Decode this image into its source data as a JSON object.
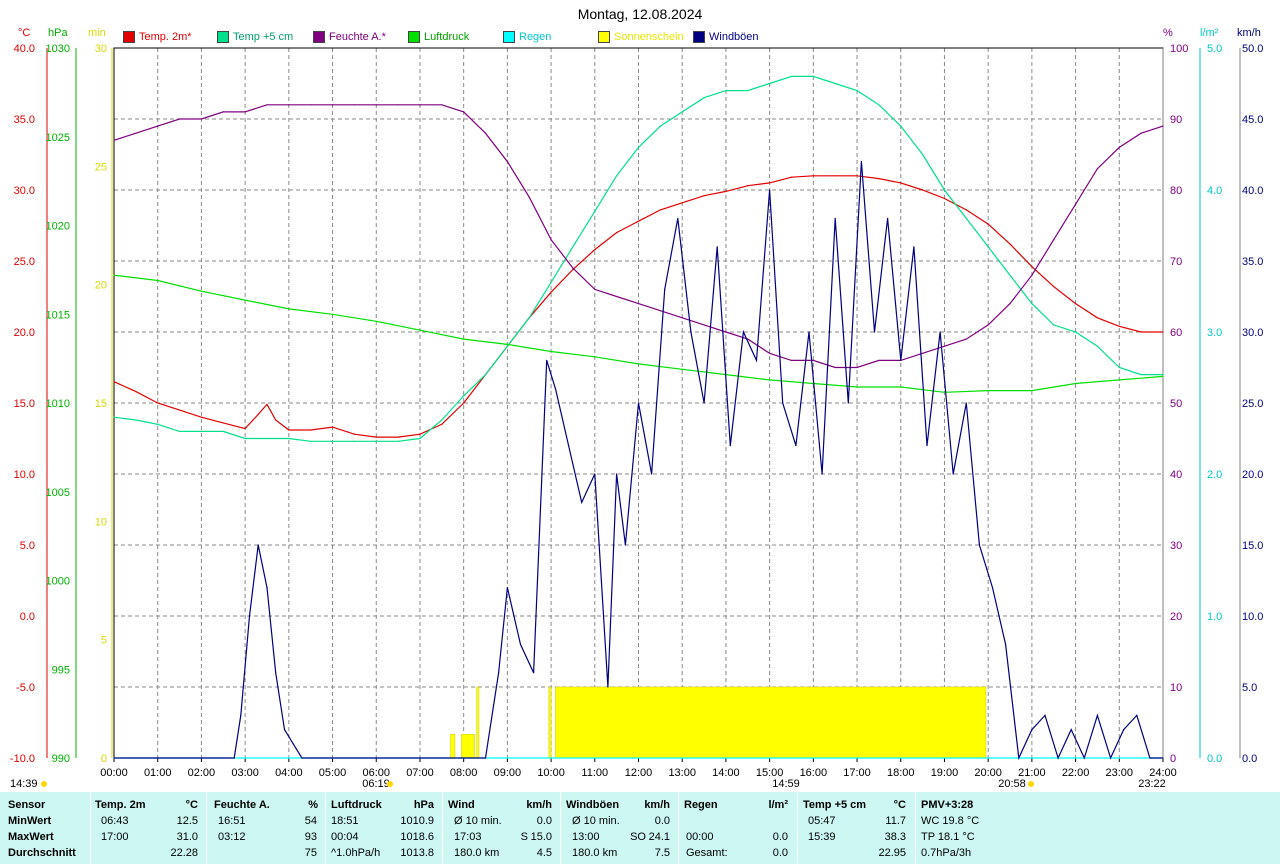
{
  "title": "Montag, 12.08.2024",
  "legend": [
    {
      "label": "Temp. 2m*",
      "color": "#e00000",
      "text_color": "#e00000"
    },
    {
      "label": "Temp +5 cm",
      "color": "#00e08a",
      "text_color": "#00a070"
    },
    {
      "label": "Feuchte A.*",
      "color": "#800080",
      "text_color": "#800080"
    },
    {
      "label": "Luftdruck",
      "color": "#00e000",
      "text_color": "#00a000"
    },
    {
      "label": "Regen",
      "color": "#00ffff",
      "text_color": "#00c8c8"
    },
    {
      "label": "Sonnenschein",
      "color": "#ffff00",
      "text_color": "#e8e800"
    },
    {
      "label": "Windböen",
      "color": "#000080",
      "text_color": "#000080"
    }
  ],
  "unit_heads": {
    "temp": "°C",
    "pressure": "hPa",
    "sun": "min",
    "humidity": "%",
    "rain": "l/m²",
    "wind": "km/h"
  },
  "axes": {
    "temp_ticks": [
      "40.0",
      "35.0",
      "30.0",
      "25.0",
      "20.0",
      "15.0",
      "10.0",
      "5.0",
      "0.0",
      "-5.0",
      "-10.0"
    ],
    "pressure_ticks": [
      "1030",
      "1025",
      "1020",
      "1015",
      "1010",
      "1005",
      "1000",
      "995",
      "990"
    ],
    "sun_ticks": [
      "30",
      "25",
      "20",
      "15",
      "10",
      "5",
      "0"
    ],
    "humidity_ticks": [
      "100",
      "90",
      "80",
      "70",
      "60",
      "50",
      "40",
      "30",
      "20",
      "10",
      "0"
    ],
    "rain_ticks": [
      "5.0",
      "4.0",
      "3.0",
      "2.0",
      "1.0",
      "0.0"
    ],
    "wind_ticks": [
      "50.0",
      "45.0",
      "40.0",
      "35.0",
      "30.0",
      "25.0",
      "20.0",
      "15.0",
      "10.0",
      "5.0",
      "0.0"
    ],
    "time_ticks": [
      "00:00",
      "01:00",
      "02:00",
      "03:00",
      "04:00",
      "05:00",
      "06:00",
      "07:00",
      "08:00",
      "09:00",
      "10:00",
      "11:00",
      "12:00",
      "13:00",
      "14:00",
      "15:00",
      "16:00",
      "17:00",
      "18:00",
      "19:00",
      "20:00",
      "21:00",
      "22:00",
      "23:00",
      "24:00"
    ]
  },
  "markers": {
    "time_left": "14:39",
    "sunrise": "06:19",
    "noon": "14:59",
    "sunset": "20:58",
    "moon": "23:22"
  },
  "chart_data": {
    "type": "line",
    "title": "Montag, 12.08.2024",
    "x_unit": "hour of day",
    "xlim": [
      0,
      24
    ],
    "series": [
      {
        "name": "Temp. 2m*",
        "axis": "°C",
        "ylim": [
          -10,
          40
        ],
        "x": [
          0,
          0.5,
          1,
          1.5,
          2,
          2.5,
          3,
          3.3,
          3.5,
          3.7,
          4,
          4.5,
          5,
          5.5,
          6,
          6.5,
          7,
          7.5,
          8,
          8.5,
          9,
          9.5,
          10,
          10.5,
          11,
          11.5,
          12,
          12.5,
          13,
          13.5,
          14,
          14.5,
          15,
          15.5,
          16,
          16.5,
          17,
          17.5,
          18,
          18.5,
          19,
          19.5,
          20,
          20.5,
          21,
          21.5,
          22,
          22.5,
          23,
          23.5,
          24
        ],
        "values": [
          16.5,
          15.8,
          15.0,
          14.5,
          14.0,
          13.6,
          13.2,
          14.2,
          14.9,
          13.8,
          13.1,
          13.1,
          13.3,
          12.8,
          12.6,
          12.6,
          12.8,
          13.5,
          15.0,
          17.0,
          19.0,
          21.0,
          22.8,
          24.4,
          25.8,
          27.0,
          27.8,
          28.6,
          29.1,
          29.6,
          29.9,
          30.3,
          30.5,
          30.9,
          31.0,
          31.0,
          31.0,
          30.8,
          30.5,
          30.0,
          29.4,
          28.6,
          27.6,
          26.2,
          24.6,
          23.2,
          22.0,
          21.0,
          20.4,
          20.0,
          20.0
        ]
      },
      {
        "name": "Temp +5 cm",
        "axis": "°C",
        "ylim": [
          -10,
          40
        ],
        "x": [
          0,
          0.5,
          1,
          1.5,
          2,
          2.5,
          3,
          3.5,
          4,
          4.5,
          5,
          5.5,
          6,
          6.5,
          7,
          7.5,
          8,
          8.5,
          9,
          9.5,
          10,
          10.5,
          11,
          11.5,
          12,
          12.5,
          13,
          13.5,
          14,
          14.5,
          15,
          15.5,
          16,
          16.5,
          17,
          17.5,
          18,
          18.5,
          19,
          19.5,
          20,
          20.5,
          21,
          21.5,
          22,
          22.5,
          23,
          23.5,
          24
        ],
        "values": [
          14.0,
          13.8,
          13.5,
          13.0,
          13.0,
          13.0,
          12.5,
          12.5,
          12.5,
          12.3,
          12.3,
          12.3,
          12.3,
          12.3,
          12.5,
          13.8,
          15.5,
          17.0,
          19.0,
          21.0,
          23.5,
          26.0,
          28.5,
          31.0,
          33.0,
          34.5,
          35.5,
          36.5,
          37.0,
          37.0,
          37.5,
          38.0,
          38.0,
          37.5,
          37.0,
          36.0,
          34.5,
          32.5,
          30.0,
          28.0,
          26.0,
          24.0,
          22.0,
          20.5,
          20.0,
          19.0,
          17.5,
          17.0,
          17.0
        ]
      },
      {
        "name": "Feuchte A.*",
        "axis": "%",
        "ylim": [
          0,
          100
        ],
        "x": [
          0,
          0.5,
          1,
          1.5,
          2,
          2.5,
          3,
          3.5,
          4,
          4.5,
          5,
          5.5,
          6,
          6.5,
          7,
          7.5,
          8,
          8.5,
          9,
          9.5,
          10,
          10.5,
          11,
          11.5,
          12,
          12.5,
          13,
          13.5,
          14,
          14.5,
          15,
          15.5,
          16,
          16.5,
          17,
          17.5,
          18,
          18.5,
          19,
          19.5,
          20,
          20.5,
          21,
          21.5,
          22,
          22.5,
          23,
          23.5,
          24
        ],
        "values": [
          87,
          88,
          89,
          90,
          90,
          91,
          91,
          92,
          92,
          92,
          92,
          92,
          92,
          92,
          92,
          92,
          91,
          88,
          84,
          79,
          73,
          69,
          66,
          65,
          64,
          63,
          62,
          61,
          60,
          59,
          57,
          56,
          56,
          55,
          55,
          56,
          56,
          57,
          58,
          59,
          61,
          64,
          68,
          73,
          78,
          83,
          86,
          88,
          89
        ]
      },
      {
        "name": "Luftdruck",
        "axis": "hPa",
        "ylim": [
          990,
          1030
        ],
        "x": [
          0,
          1,
          2,
          3,
          4,
          5,
          6,
          7,
          8,
          9,
          10,
          11,
          12,
          13,
          14,
          15,
          16,
          17,
          18,
          19,
          20,
          21,
          22,
          23,
          24
        ],
        "values": [
          1017.2,
          1016.9,
          1016.3,
          1015.8,
          1015.3,
          1015.0,
          1014.6,
          1014.1,
          1013.6,
          1013.3,
          1012.9,
          1012.6,
          1012.2,
          1011.9,
          1011.6,
          1011.3,
          1011.1,
          1010.9,
          1010.9,
          1010.6,
          1010.7,
          1010.7,
          1011.1,
          1011.3,
          1011.5
        ]
      },
      {
        "name": "Regen",
        "axis": "l/m²",
        "ylim": [
          0,
          5
        ],
        "x": [
          0,
          24
        ],
        "values": [
          0,
          0
        ]
      },
      {
        "name": "Sonnenschein",
        "axis": "min",
        "ylim": [
          0,
          30
        ],
        "intervals": [
          [
            7.7,
            7.8,
            1
          ],
          [
            7.95,
            8.25,
            1
          ],
          [
            8.3,
            8.35,
            3
          ],
          [
            9.95,
            10.0,
            3
          ],
          [
            10.1,
            19.95,
            3
          ]
        ]
      },
      {
        "name": "Windböen",
        "axis": "km/h",
        "ylim": [
          0,
          50
        ],
        "x": [
          0,
          2.75,
          2.9,
          3.1,
          3.3,
          3.5,
          3.7,
          3.9,
          4.1,
          4.3,
          4.5,
          8.5,
          8.8,
          9.0,
          9.3,
          9.6,
          9.9,
          10.1,
          10.4,
          10.7,
          11.0,
          11.3,
          11.5,
          11.7,
          12.0,
          12.3,
          12.6,
          12.9,
          13.2,
          13.5,
          13.8,
          14.1,
          14.4,
          14.7,
          15.0,
          15.3,
          15.6,
          15.9,
          16.2,
          16.5,
          16.8,
          17.1,
          17.4,
          17.7,
          18.0,
          18.3,
          18.6,
          18.9,
          19.2,
          19.5,
          19.8,
          20.1,
          20.4,
          20.7,
          21.0,
          21.3,
          21.6,
          21.9,
          22.2,
          22.5,
          22.8,
          23.1,
          23.4,
          23.7,
          24.0
        ],
        "values": [
          0,
          0,
          3,
          10,
          15,
          12,
          6,
          2,
          1,
          0,
          0,
          0,
          6,
          12,
          8,
          6,
          28,
          26,
          22,
          18,
          20,
          5,
          20,
          15,
          25,
          20,
          33,
          38,
          30,
          25,
          36,
          22,
          30,
          28,
          40,
          25,
          22,
          30,
          20,
          38,
          25,
          42,
          30,
          38,
          28,
          36,
          22,
          30,
          20,
          25,
          15,
          12,
          8,
          0,
          2,
          3,
          0,
          2,
          0,
          3,
          0,
          2,
          3,
          0,
          0
        ]
      }
    ]
  },
  "stats": {
    "headers": [
      {
        "label": "Sensor",
        "unit": ""
      },
      {
        "label": "Temp. 2m",
        "unit": "°C"
      },
      {
        "label": "Feuchte A.",
        "unit": "%"
      },
      {
        "label": "Luftdruck",
        "unit": "hPa"
      },
      {
        "label": "Wind",
        "unit": "km/h"
      },
      {
        "label": "Windböen",
        "unit": "km/h"
      },
      {
        "label": "Regen",
        "unit": "l/m²"
      },
      {
        "label": "Temp +5 cm",
        "unit": "°C"
      },
      {
        "label": "PMV+3:28",
        "unit": ""
      }
    ],
    "row_labels": [
      "MinWert",
      "MaxWert",
      "Durchschnitt"
    ],
    "temp2m": [
      [
        "06:43",
        "12.5"
      ],
      [
        "17:00",
        "31.0"
      ],
      [
        "",
        "22.28"
      ]
    ],
    "feuchte": [
      [
        "16:51",
        "54"
      ],
      [
        "03:12",
        "93"
      ],
      [
        "",
        "75"
      ]
    ],
    "luftdruck": [
      [
        "18:51",
        "1010.9"
      ],
      [
        "00:04",
        "1018.6"
      ],
      [
        "^1.0hPa/h",
        "1013.8"
      ]
    ],
    "wind": [
      [
        "Ø 10 min.",
        "",
        "0.0"
      ],
      [
        "17:03",
        "S",
        "15.0"
      ],
      [
        "180.0 km",
        "",
        "4.5"
      ]
    ],
    "windboeen": [
      [
        "Ø 10 min.",
        "",
        "0.0"
      ],
      [
        "13:00",
        "SO",
        "24.1"
      ],
      [
        "180.0 km",
        "",
        "7.5"
      ]
    ],
    "regen": [
      [
        "",
        ""
      ],
      [
        "00:00",
        "0.0"
      ],
      [
        "Gesamt:",
        "0.0"
      ]
    ],
    "temp5cm": [
      [
        "05:47",
        "11.7"
      ],
      [
        "15:39",
        "38.3"
      ],
      [
        "",
        "22.95"
      ]
    ],
    "pmv": [
      "WC 19.8 °C",
      "TP 18.1 °C",
      "0.7hPa/3h"
    ]
  }
}
